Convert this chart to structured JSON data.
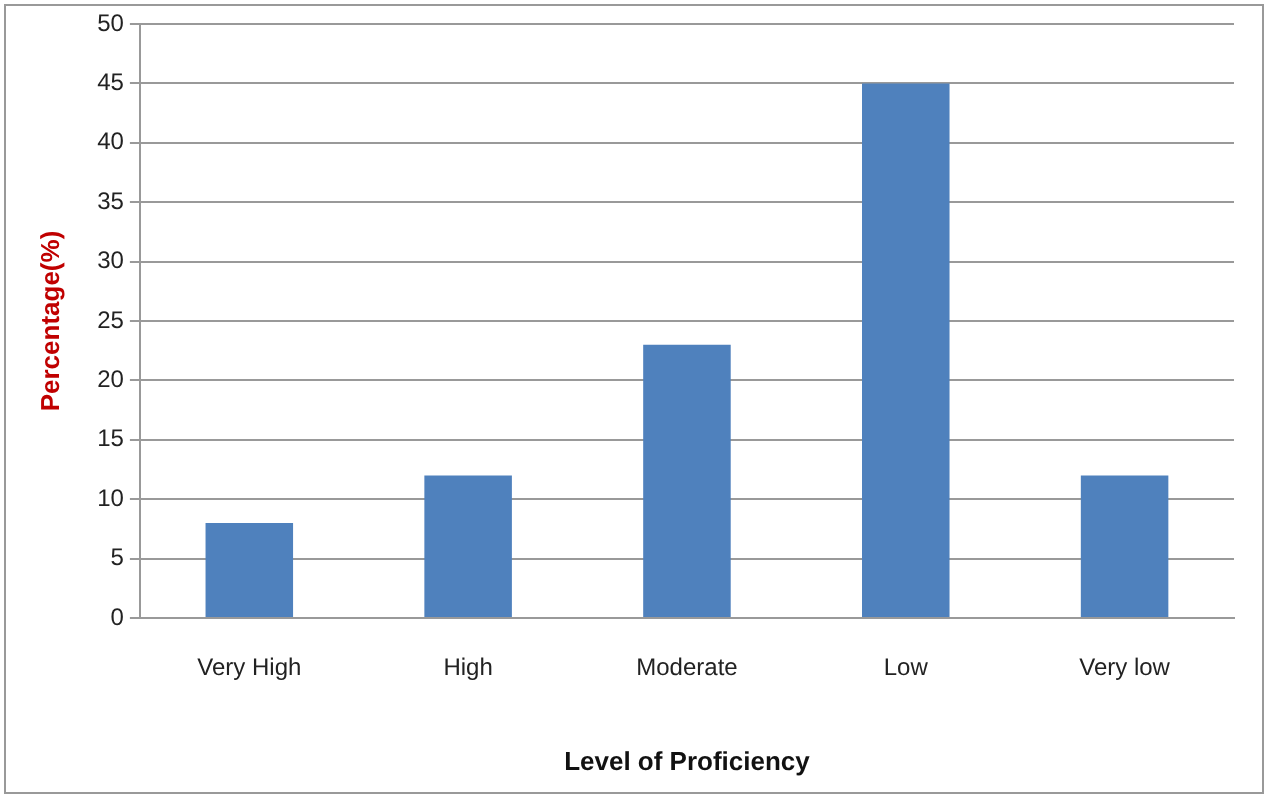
{
  "chart_data": {
    "type": "bar",
    "xlabel": "Level of Proficiency",
    "ylabel": "Percentage(%)",
    "categories": [
      "Very High",
      "High",
      "Moderate",
      "Low",
      "Very low"
    ],
    "values": [
      8,
      12,
      23,
      45,
      12
    ],
    "color": "#4f81bd",
    "ylim": [
      0,
      50
    ],
    "yticks": [
      0,
      5,
      10,
      15,
      20,
      25,
      30,
      35,
      40,
      45,
      50
    ],
    "grid": "y",
    "legend": false
  }
}
